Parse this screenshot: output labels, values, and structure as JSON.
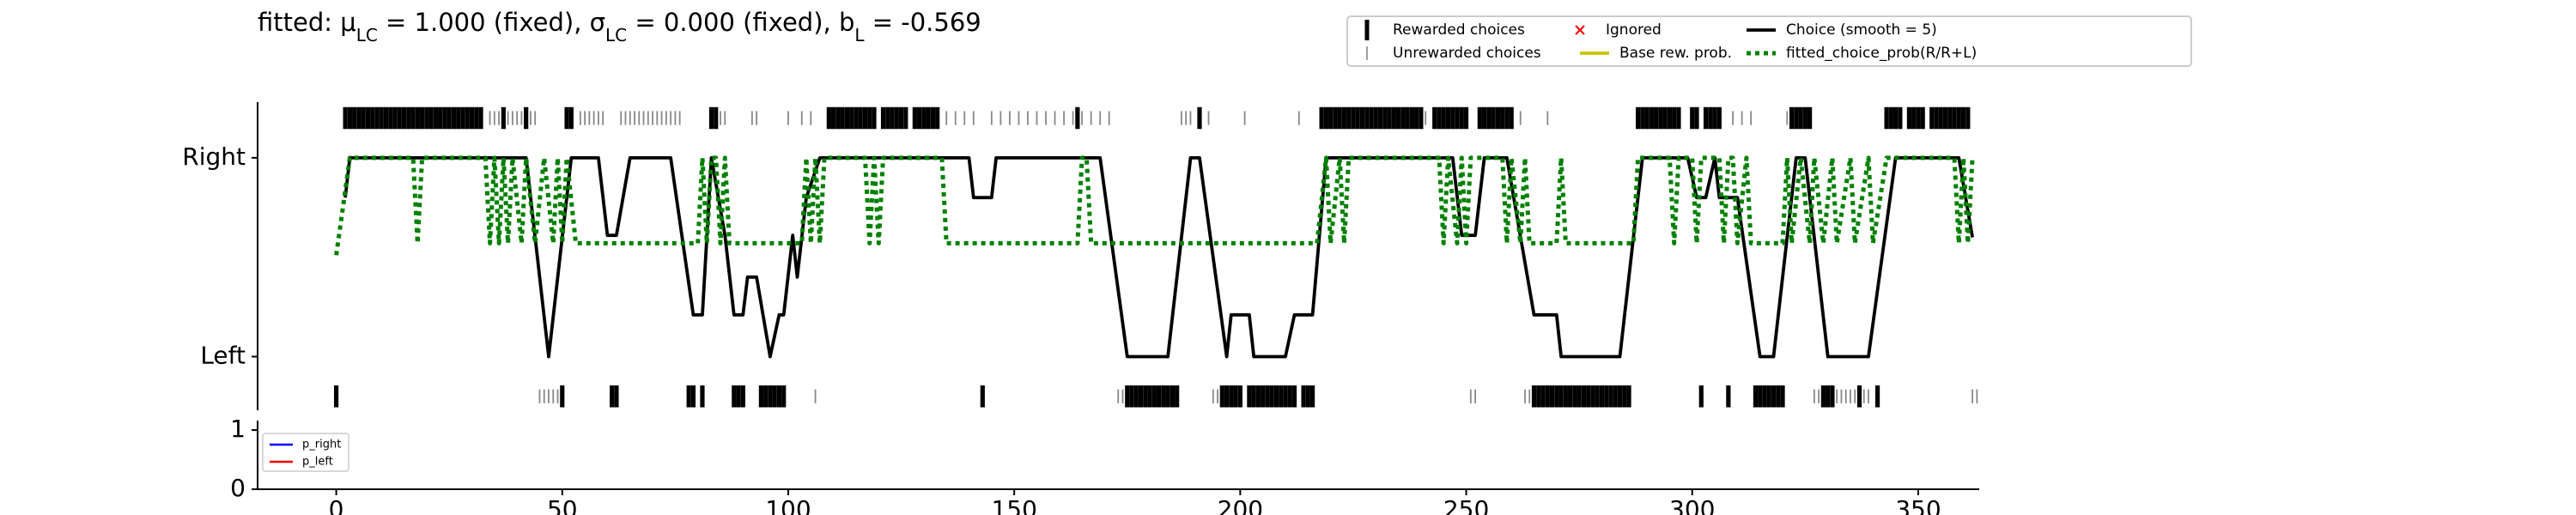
{
  "chart_data": [
    {
      "type": "line",
      "title": [
        "fitted: μ",
        "LC",
        " = 1.000 (fixed), σ",
        "LC",
        " = 0.000 (fixed), b",
        "L",
        " = -0.569"
      ],
      "xlim": [
        -17.4,
        363.5
      ],
      "ylim": [
        -0.27,
        1.28
      ],
      "yticks": [
        {
          "value": 0,
          "label": "Left"
        },
        {
          "value": 1,
          "label": "Right"
        }
      ],
      "markers": [
        {
          "name": "Rewarded choices",
          "color": "#000000",
          "style": "bar",
          "right": [
            2,
            3,
            4,
            5,
            6,
            7,
            8,
            9,
            10,
            11,
            12,
            13,
            14,
            15,
            16,
            17,
            18,
            19,
            20,
            21,
            22,
            23,
            24,
            25,
            26,
            27,
            28,
            29,
            30,
            31,
            32,
            37,
            42,
            51,
            52,
            83,
            84,
            109,
            110,
            111,
            112,
            113,
            114,
            115,
            116,
            117,
            118,
            119,
            121,
            122,
            123,
            124,
            125,
            126,
            128,
            129,
            130,
            131,
            132,
            133,
            164,
            191,
            218,
            219,
            220,
            221,
            222,
            223,
            224,
            225,
            226,
            227,
            228,
            229,
            230,
            231,
            232,
            233,
            234,
            235,
            236,
            237,
            238,
            239,
            240,
            243,
            244,
            245,
            246,
            247,
            248,
            249,
            250,
            253,
            254,
            255,
            256,
            257,
            258,
            259,
            260,
            288,
            289,
            290,
            291,
            292,
            293,
            294,
            295,
            296,
            297,
            300,
            301,
            303,
            304,
            305,
            306,
            322,
            323,
            324,
            325,
            326,
            343,
            344,
            345,
            346,
            348,
            349,
            350,
            351,
            353,
            354,
            355,
            356,
            357,
            358,
            359,
            360,
            361
          ],
          "left": [
            0,
            50,
            61,
            62,
            78,
            79,
            81,
            88,
            89,
            90,
            94,
            95,
            96,
            97,
            98,
            99,
            143,
            175,
            176,
            177,
            178,
            179,
            180,
            181,
            182,
            183,
            184,
            185,
            186,
            196,
            197,
            198,
            199,
            200,
            202,
            203,
            204,
            205,
            206,
            207,
            208,
            209,
            210,
            211,
            212,
            214,
            215,
            216,
            265,
            266,
            267,
            268,
            269,
            270,
            271,
            272,
            273,
            274,
            275,
            276,
            277,
            278,
            279,
            280,
            281,
            282,
            283,
            284,
            285,
            286,
            302,
            308,
            314,
            315,
            316,
            317,
            318,
            319,
            320,
            329,
            330,
            331,
            337,
            341
          ]
        },
        {
          "name": "Unrewarded choices",
          "color": "#888888",
          "style": "thin",
          "right": [
            34,
            35,
            36,
            38,
            39,
            40,
            41,
            43,
            44,
            54,
            55,
            56,
            57,
            58,
            59,
            63,
            64,
            65,
            66,
            67,
            68,
            69,
            70,
            71,
            72,
            73,
            74,
            75,
            76,
            85,
            86,
            92,
            93,
            100,
            103,
            105,
            135,
            137,
            139,
            141,
            145,
            147,
            149,
            151,
            153,
            155,
            157,
            159,
            161,
            163,
            165,
            167,
            169,
            171,
            187,
            188,
            189,
            193,
            201,
            213,
            241,
            262,
            268,
            309,
            311,
            313,
            321
          ],
          "left": [
            45,
            46,
            47,
            48,
            49,
            106,
            173,
            174,
            194,
            195,
            251,
            252,
            263,
            264,
            327,
            328,
            332,
            333,
            334,
            335,
            336,
            338,
            339,
            362,
            363
          ]
        },
        {
          "name": "Ignored",
          "color": "#ff0000",
          "style": "x",
          "right": [],
          "left": []
        }
      ],
      "series": [
        {
          "name": "Base rew. prob.",
          "color": "#c8c800",
          "style": "solid",
          "x": [],
          "values": []
        },
        {
          "name": "Choice (smooth = 5)",
          "color": "#000000",
          "style": "solid",
          "x": [
            2,
            3,
            42,
            47,
            52,
            58,
            60,
            62,
            65,
            74,
            79,
            81,
            83,
            86,
            88,
            90,
            91,
            93,
            96,
            98,
            99,
            101,
            102,
            104,
            107,
            140,
            141,
            145,
            146,
            169,
            175,
            184,
            189,
            191,
            197,
            198,
            202,
            203,
            210,
            212,
            216,
            219,
            247,
            249,
            252,
            254,
            259,
            265,
            270,
            271,
            284,
            289,
            299,
            301,
            303,
            305,
            306,
            310,
            315,
            318,
            323,
            325,
            330,
            339,
            345,
            359,
            362
          ],
          "values": [
            0.8,
            1,
            1,
            0,
            1,
            1,
            0.61,
            0.61,
            1,
            1,
            0.21,
            0.21,
            1,
            0.61,
            0.21,
            0.21,
            0.4,
            0.4,
            0,
            0.21,
            0.21,
            0.61,
            0.4,
            0.8,
            1,
            1,
            0.8,
            0.8,
            1,
            1,
            0,
            0,
            1,
            1,
            0,
            0.21,
            0.21,
            0,
            0,
            0.21,
            0.21,
            1,
            1,
            0.61,
            0.61,
            1,
            1,
            0.21,
            0.21,
            0,
            0,
            1,
            1,
            0.8,
            0.8,
            1,
            0.8,
            0.8,
            0,
            0,
            1,
            1,
            0,
            0,
            1,
            1,
            0.6
          ]
        },
        {
          "name": "fitted_choice_prob(R/R+L)",
          "color": "#008000",
          "style": "dotted",
          "x": [
            0,
            3,
            17,
            18,
            19,
            33,
            34,
            35,
            36,
            37,
            38,
            39,
            41,
            42,
            44,
            46,
            48,
            49,
            50,
            51,
            53,
            80,
            81,
            82,
            83,
            84,
            85,
            86,
            87,
            103,
            104,
            105,
            106,
            107,
            108,
            117,
            118,
            119,
            120,
            121,
            134,
            135,
            164,
            165,
            166,
            167,
            217,
            219,
            220,
            222,
            223,
            224,
            244,
            245,
            246,
            248,
            249,
            250,
            251,
            258,
            259,
            260,
            262,
            263,
            264,
            270,
            271,
            272,
            287,
            288,
            295,
            296,
            297,
            300,
            301,
            302,
            306,
            307,
            308,
            309,
            310,
            312,
            313,
            320,
            321,
            322,
            324,
            326,
            327,
            329,
            331,
            332,
            335,
            336,
            339,
            340,
            343,
            358,
            359,
            360,
            361,
            362
          ],
          "values": [
            0.51,
            1,
            1,
            0.57,
            1,
            1,
            0.57,
            1,
            0.57,
            1,
            0.57,
            1,
            0.57,
            1,
            0.57,
            1,
            0.57,
            1,
            0.57,
            1,
            0.57,
            0.57,
            1,
            0.57,
            1,
            1,
            0.57,
            1,
            0.57,
            0.57,
            1,
            0.57,
            1,
            0.57,
            1,
            1,
            0.57,
            1,
            0.57,
            1,
            1,
            0.57,
            0.57,
            1,
            1,
            0.57,
            0.57,
            1,
            0.57,
            1,
            0.57,
            1,
            1,
            0.57,
            1,
            0.57,
            1,
            0.57,
            1,
            1,
            0.57,
            1,
            0.57,
            1,
            0.57,
            0.57,
            1,
            0.57,
            0.57,
            1,
            1,
            0.57,
            1,
            1,
            0.57,
            1,
            1,
            0.57,
            1,
            1,
            0.57,
            1,
            0.57,
            0.57,
            1,
            0.57,
            1,
            0.57,
            1,
            0.57,
            1,
            0.57,
            1,
            0.57,
            1,
            0.57,
            1,
            1,
            0.57,
            1,
            0.57,
            1
          ]
        }
      ]
    },
    {
      "type": "line",
      "xlim": [
        -17.4,
        363.5
      ],
      "xticks": [
        0,
        50,
        100,
        150,
        200,
        250,
        300,
        350
      ],
      "ylim": [
        0,
        1.16
      ],
      "yticks": [
        0,
        1
      ],
      "series": [
        {
          "name": "p_right",
          "color": "#0000ff",
          "values": []
        },
        {
          "name": "p_left",
          "color": "#ff0000",
          "values": []
        }
      ]
    }
  ]
}
